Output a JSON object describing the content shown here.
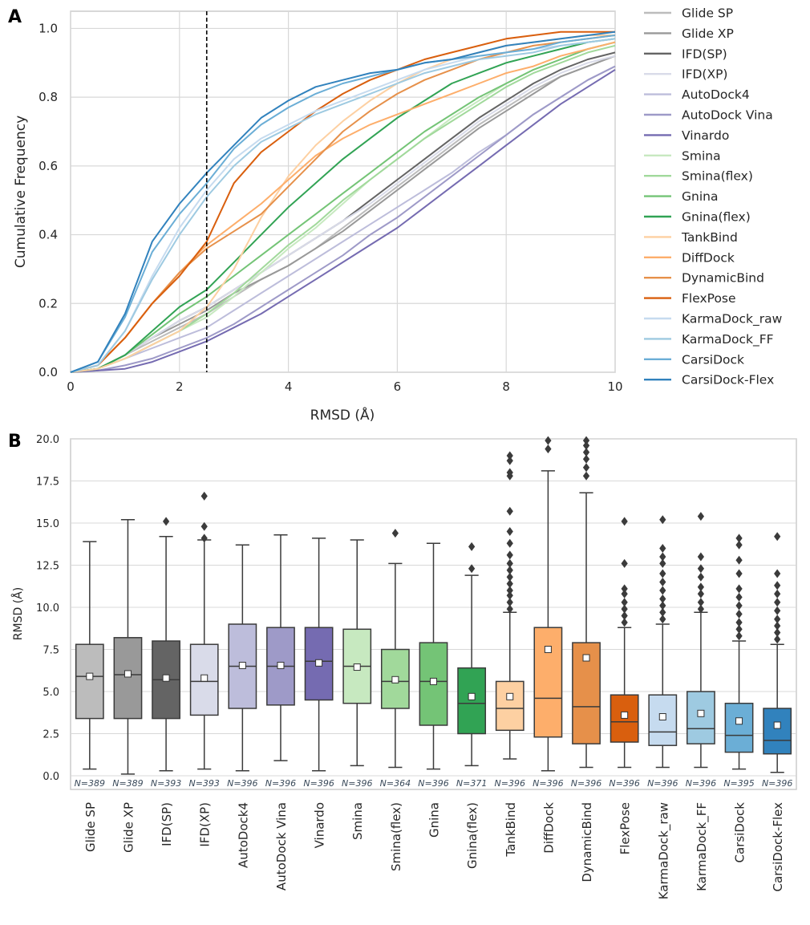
{
  "panels": {
    "a_letter": "A",
    "b_letter": "B"
  },
  "colors": {
    "Glide SP": "#bcbcbc",
    "Glide XP": "#999999",
    "IFD(SP)": "#646464",
    "IFD(XP)": "#d9dbe9",
    "AutoDock4": "#bdbddb",
    "AutoDock Vina": "#9e9ac8",
    "Vinardo": "#756bb1",
    "Smina": "#c7e9c0",
    "Smina(flex)": "#a1d99b",
    "Gnina": "#74c476",
    "Gnina(flex)": "#31a354",
    "TankBind": "#fdd0a2",
    "DiffDock": "#fdae6b",
    "DynamicBind": "#e6904a",
    "FlexPose": "#d95f0e",
    "KarmaDock_raw": "#c6dbef",
    "KarmaDock_FF": "#9ecae1",
    "CarsiDock": "#6baed6",
    "CarsiDock-Flex": "#3182bd"
  },
  "chart_data": [
    {
      "type": "line",
      "xlabel": "RMSD (Å)",
      "ylabel": "Cumulative Frequency",
      "xlim": [
        0,
        10
      ],
      "ylim": [
        0,
        1.05
      ],
      "xticks": [
        "0",
        "2",
        "4",
        "6",
        "8",
        "10"
      ],
      "yticks": [
        "0.0",
        "0.2",
        "0.4",
        "0.6",
        "0.8",
        "1.0"
      ],
      "threshold_x": 2.5,
      "grid": true,
      "legend_position": "right",
      "x": [
        0,
        0.5,
        1,
        1.5,
        2,
        2.5,
        3,
        3.5,
        4,
        4.5,
        5,
        5.5,
        6,
        6.5,
        7,
        7.5,
        8,
        8.5,
        9,
        9.5,
        10
      ],
      "series": [
        {
          "name": "Glide SP",
          "values": [
            0,
            0.01,
            0.05,
            0.09,
            0.13,
            0.17,
            0.22,
            0.27,
            0.31,
            0.36,
            0.42,
            0.48,
            0.54,
            0.6,
            0.66,
            0.72,
            0.77,
            0.82,
            0.86,
            0.89,
            0.92
          ]
        },
        {
          "name": "Glide XP",
          "values": [
            0,
            0.01,
            0.05,
            0.1,
            0.14,
            0.18,
            0.23,
            0.27,
            0.31,
            0.36,
            0.41,
            0.47,
            0.53,
            0.59,
            0.65,
            0.71,
            0.76,
            0.81,
            0.86,
            0.89,
            0.92
          ]
        },
        {
          "name": "IFD(SP)",
          "values": [
            0,
            0.01,
            0.05,
            0.1,
            0.15,
            0.19,
            0.24,
            0.29,
            0.34,
            0.39,
            0.44,
            0.5,
            0.56,
            0.62,
            0.68,
            0.74,
            0.79,
            0.84,
            0.88,
            0.91,
            0.93
          ]
        },
        {
          "name": "IFD(XP)",
          "values": [
            0,
            0.01,
            0.05,
            0.1,
            0.15,
            0.19,
            0.24,
            0.29,
            0.34,
            0.39,
            0.44,
            0.49,
            0.55,
            0.61,
            0.67,
            0.73,
            0.78,
            0.83,
            0.87,
            0.9,
            0.92
          ]
        },
        {
          "name": "AutoDock4",
          "values": [
            0,
            0.01,
            0.04,
            0.07,
            0.1,
            0.13,
            0.18,
            0.23,
            0.28,
            0.33,
            0.38,
            0.43,
            0.48,
            0.53,
            0.58,
            0.64,
            0.69,
            0.75,
            0.8,
            0.85,
            0.89
          ]
        },
        {
          "name": "AutoDock Vina",
          "values": [
            0,
            0.005,
            0.02,
            0.04,
            0.07,
            0.1,
            0.14,
            0.19,
            0.24,
            0.29,
            0.34,
            0.4,
            0.45,
            0.51,
            0.57,
            0.63,
            0.69,
            0.75,
            0.8,
            0.85,
            0.89
          ]
        },
        {
          "name": "Vinardo",
          "values": [
            0,
            0.005,
            0.01,
            0.03,
            0.06,
            0.09,
            0.13,
            0.17,
            0.22,
            0.27,
            0.32,
            0.37,
            0.42,
            0.48,
            0.54,
            0.6,
            0.66,
            0.72,
            0.78,
            0.83,
            0.88
          ]
        },
        {
          "name": "Smina",
          "values": [
            0,
            0.01,
            0.04,
            0.08,
            0.12,
            0.16,
            0.22,
            0.29,
            0.36,
            0.42,
            0.49,
            0.56,
            0.62,
            0.68,
            0.74,
            0.79,
            0.84,
            0.88,
            0.91,
            0.94,
            0.96
          ]
        },
        {
          "name": "Smina(flex)",
          "values": [
            0,
            0.01,
            0.04,
            0.08,
            0.12,
            0.17,
            0.23,
            0.3,
            0.37,
            0.43,
            0.5,
            0.56,
            0.62,
            0.68,
            0.73,
            0.78,
            0.83,
            0.87,
            0.9,
            0.93,
            0.95
          ]
        },
        {
          "name": "Gnina",
          "values": [
            0,
            0.01,
            0.05,
            0.11,
            0.17,
            0.22,
            0.28,
            0.34,
            0.4,
            0.46,
            0.52,
            0.58,
            0.64,
            0.7,
            0.75,
            0.8,
            0.84,
            0.88,
            0.91,
            0.94,
            0.96
          ]
        },
        {
          "name": "Gnina(flex)",
          "values": [
            0,
            0.01,
            0.05,
            0.12,
            0.19,
            0.24,
            0.32,
            0.4,
            0.48,
            0.55,
            0.62,
            0.68,
            0.74,
            0.79,
            0.84,
            0.87,
            0.9,
            0.92,
            0.94,
            0.96,
            0.97
          ]
        },
        {
          "name": "TankBind",
          "values": [
            0,
            0.01,
            0.04,
            0.08,
            0.12,
            0.19,
            0.3,
            0.45,
            0.57,
            0.66,
            0.73,
            0.79,
            0.84,
            0.88,
            0.91,
            0.93,
            0.95,
            0.96,
            0.97,
            0.98,
            0.98
          ]
        },
        {
          "name": "DiffDock",
          "values": [
            0,
            0.02,
            0.1,
            0.2,
            0.29,
            0.37,
            0.43,
            0.49,
            0.56,
            0.63,
            0.68,
            0.72,
            0.75,
            0.78,
            0.81,
            0.84,
            0.87,
            0.89,
            0.92,
            0.94,
            0.96
          ]
        },
        {
          "name": "DynamicBind",
          "values": [
            0,
            0.02,
            0.1,
            0.2,
            0.29,
            0.36,
            0.41,
            0.46,
            0.54,
            0.62,
            0.7,
            0.76,
            0.81,
            0.85,
            0.88,
            0.91,
            0.93,
            0.95,
            0.96,
            0.97,
            0.98
          ]
        },
        {
          "name": "FlexPose",
          "values": [
            0,
            0.02,
            0.1,
            0.2,
            0.28,
            0.38,
            0.55,
            0.64,
            0.7,
            0.76,
            0.81,
            0.85,
            0.88,
            0.91,
            0.93,
            0.95,
            0.97,
            0.98,
            0.99,
            0.99,
            0.99
          ]
        },
        {
          "name": "KarmaDock_raw",
          "values": [
            0,
            0.02,
            0.12,
            0.28,
            0.42,
            0.53,
            0.62,
            0.68,
            0.72,
            0.76,
            0.79,
            0.82,
            0.85,
            0.88,
            0.9,
            0.92,
            0.93,
            0.94,
            0.95,
            0.96,
            0.97
          ]
        },
        {
          "name": "KarmaDock_FF",
          "values": [
            0,
            0.02,
            0.12,
            0.27,
            0.4,
            0.51,
            0.6,
            0.67,
            0.71,
            0.75,
            0.78,
            0.81,
            0.84,
            0.87,
            0.89,
            0.91,
            0.92,
            0.93,
            0.95,
            0.96,
            0.97
          ]
        },
        {
          "name": "CarsiDock",
          "values": [
            0,
            0.03,
            0.16,
            0.35,
            0.46,
            0.55,
            0.65,
            0.72,
            0.77,
            0.81,
            0.84,
            0.86,
            0.88,
            0.9,
            0.91,
            0.92,
            0.93,
            0.94,
            0.96,
            0.97,
            0.98
          ]
        },
        {
          "name": "CarsiDock-Flex",
          "values": [
            0,
            0.03,
            0.17,
            0.38,
            0.49,
            0.58,
            0.66,
            0.74,
            0.79,
            0.83,
            0.85,
            0.87,
            0.88,
            0.9,
            0.91,
            0.93,
            0.95,
            0.96,
            0.97,
            0.98,
            0.99
          ]
        }
      ]
    },
    {
      "type": "box",
      "ylabel": "RMSD (Å)",
      "ylim": [
        0,
        20
      ],
      "yticks": [
        "0.0",
        "2.5",
        "5.0",
        "7.5",
        "10.0",
        "12.5",
        "15.0",
        "17.5",
        "20.0"
      ],
      "grid": true,
      "categories": [
        "Glide SP",
        "Glide XP",
        "IFD(SP)",
        "IFD(XP)",
        "AutoDock4",
        "AutoDock Vina",
        "Vinardo",
        "Smina",
        "Smina(flex)",
        "Gnina",
        "Gnina(flex)",
        "TankBind",
        "DiffDock",
        "DynamicBind",
        "FlexPose",
        "KarmaDock_raw",
        "KarmaDock_FF",
        "CarsiDock",
        "CarsiDock-Flex"
      ],
      "n_labels": [
        "N=389",
        "N=389",
        "N=393",
        "N=393",
        "N=396",
        "N=396",
        "N=396",
        "N=396",
        "N=364",
        "N=396",
        "N=371",
        "N=396",
        "N=396",
        "N=396",
        "N=396",
        "N=396",
        "N=396",
        "N=395",
        "N=396"
      ],
      "boxes": [
        {
          "whislo": 0.4,
          "q1": 3.4,
          "med": 5.9,
          "q3": 7.8,
          "whishi": 13.9,
          "mean": 5.9,
          "fliers": []
        },
        {
          "whislo": 0.1,
          "q1": 3.4,
          "med": 6.0,
          "q3": 8.2,
          "whishi": 15.2,
          "mean": 6.05,
          "fliers": []
        },
        {
          "whislo": 0.3,
          "q1": 3.4,
          "med": 5.7,
          "q3": 8.0,
          "whishi": 14.2,
          "mean": 5.8,
          "fliers": [
            15.1
          ]
        },
        {
          "whislo": 0.4,
          "q1": 3.6,
          "med": 5.6,
          "q3": 7.8,
          "whishi": 14.0,
          "mean": 5.8,
          "fliers": [
            14.1,
            14.8,
            16.6
          ]
        },
        {
          "whislo": 0.3,
          "q1": 4.0,
          "med": 6.5,
          "q3": 9.0,
          "whishi": 13.7,
          "mean": 6.55,
          "fliers": []
        },
        {
          "whislo": 0.9,
          "q1": 4.2,
          "med": 6.5,
          "q3": 8.8,
          "whishi": 14.3,
          "mean": 6.55,
          "fliers": []
        },
        {
          "whislo": 0.3,
          "q1": 4.5,
          "med": 6.8,
          "q3": 8.8,
          "whishi": 14.1,
          "mean": 6.7,
          "fliers": []
        },
        {
          "whislo": 0.6,
          "q1": 4.3,
          "med": 6.5,
          "q3": 8.7,
          "whishi": 14.0,
          "mean": 6.45,
          "fliers": []
        },
        {
          "whislo": 0.5,
          "q1": 4.0,
          "med": 5.6,
          "q3": 7.5,
          "whishi": 12.6,
          "mean": 5.7,
          "fliers": [
            14.4
          ]
        },
        {
          "whislo": 0.4,
          "q1": 3.0,
          "med": 5.6,
          "q3": 7.9,
          "whishi": 13.8,
          "mean": 5.6,
          "fliers": []
        },
        {
          "whislo": 0.6,
          "q1": 2.5,
          "med": 4.3,
          "q3": 6.4,
          "whishi": 11.9,
          "mean": 4.7,
          "fliers": [
            12.3,
            13.6
          ]
        },
        {
          "whislo": 1.0,
          "q1": 2.7,
          "med": 4.0,
          "q3": 5.6,
          "whishi": 9.7,
          "mean": 4.7,
          "fliers": [
            9.9,
            10.3,
            10.7,
            11.0,
            11.4,
            11.8,
            12.2,
            12.6,
            13.1,
            13.8,
            14.5,
            15.7,
            17.8,
            18.0,
            18.7,
            19.0
          ]
        },
        {
          "whislo": 0.3,
          "q1": 2.3,
          "med": 4.6,
          "q3": 8.8,
          "whishi": 18.1,
          "mean": 7.5,
          "fliers": [
            19.4,
            19.9
          ]
        },
        {
          "whislo": 0.5,
          "q1": 1.9,
          "med": 4.1,
          "q3": 7.9,
          "whishi": 16.8,
          "mean": 7.0,
          "fliers": [
            17.8,
            18.3,
            18.8,
            19.2,
            19.6,
            19.9
          ]
        },
        {
          "whislo": 0.5,
          "q1": 2.0,
          "med": 3.2,
          "q3": 4.8,
          "whishi": 8.8,
          "mean": 3.6,
          "fliers": [
            9.1,
            9.5,
            9.9,
            10.3,
            10.8,
            11.1,
            12.6,
            15.1
          ]
        },
        {
          "whislo": 0.5,
          "q1": 1.8,
          "med": 2.6,
          "q3": 4.8,
          "whishi": 9.0,
          "mean": 3.5,
          "fliers": [
            9.3,
            9.7,
            10.1,
            10.5,
            11.0,
            11.5,
            12.0,
            12.6,
            13.0,
            13.5,
            15.2
          ]
        },
        {
          "whislo": 0.5,
          "q1": 1.9,
          "med": 2.8,
          "q3": 5.0,
          "whishi": 9.7,
          "mean": 3.7,
          "fliers": [
            9.9,
            10.3,
            10.8,
            11.2,
            11.8,
            12.3,
            13.0,
            15.4
          ]
        },
        {
          "whislo": 0.4,
          "q1": 1.4,
          "med": 2.4,
          "q3": 4.3,
          "whishi": 8.0,
          "mean": 3.25,
          "fliers": [
            8.3,
            8.7,
            9.1,
            9.6,
            10.1,
            10.6,
            11.1,
            12.0,
            12.8,
            13.7,
            14.1
          ]
        },
        {
          "whislo": 0.2,
          "q1": 1.3,
          "med": 2.1,
          "q3": 4.0,
          "whishi": 7.8,
          "mean": 3.0,
          "fliers": [
            8.1,
            8.5,
            8.9,
            9.3,
            9.8,
            10.3,
            10.8,
            11.3,
            12.0,
            14.2
          ]
        }
      ]
    }
  ]
}
